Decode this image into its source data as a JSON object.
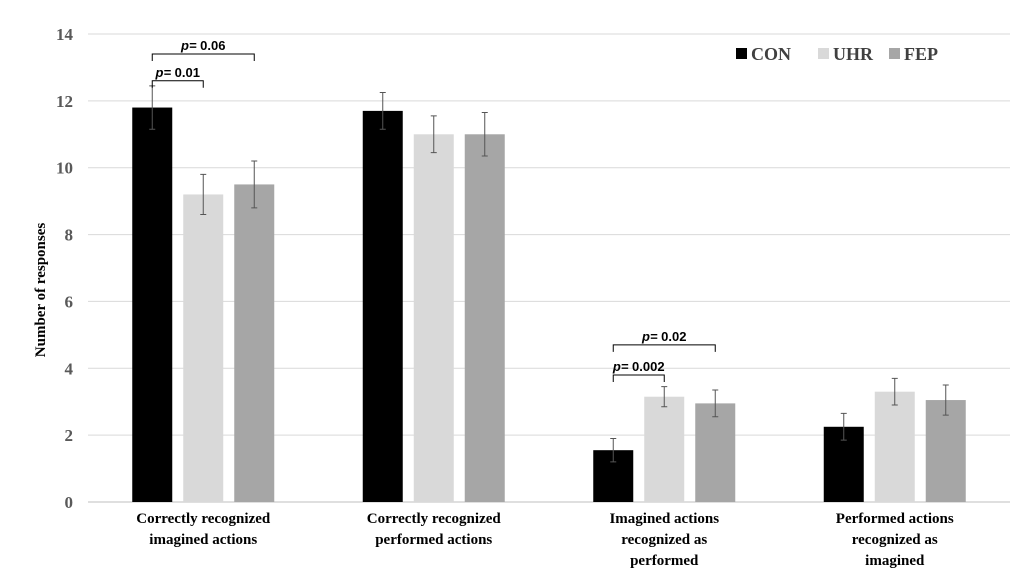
{
  "chart_data": {
    "type": "bar",
    "title": "",
    "xlabel": "",
    "ylabel": "Number of responses",
    "ylim": [
      0,
      14
    ],
    "yticks": [
      "0",
      "2",
      "4",
      "6",
      "8",
      "10",
      "12",
      "14"
    ],
    "grid": true,
    "legend_position": "top-right",
    "categories": [
      [
        "Correctly recognized",
        "imagined actions"
      ],
      [
        "Correctly recognized",
        "performed actions"
      ],
      [
        "Imagined actions",
        "recognized as",
        "performed"
      ],
      [
        "Performed actions",
        "recognized as",
        "imagined"
      ]
    ],
    "series": [
      {
        "name": "CON",
        "color": "#000000",
        "values": [
          11.8,
          11.7,
          1.55,
          2.25
        ],
        "errors": [
          0.65,
          0.55,
          0.35,
          0.4
        ]
      },
      {
        "name": "UHR",
        "color": "#d9d9d9",
        "values": [
          9.2,
          11.0,
          3.15,
          3.3
        ],
        "errors": [
          0.6,
          0.55,
          0.3,
          0.4
        ]
      },
      {
        "name": "FEP",
        "color": "#a6a6a6",
        "values": [
          9.5,
          11.0,
          2.95,
          3.05
        ],
        "errors": [
          0.7,
          0.65,
          0.4,
          0.45
        ]
      }
    ],
    "annotations": [
      {
        "text": "p= 0.06",
        "category": 0,
        "from_series": 0,
        "to_series": 2,
        "y": 13.7
      },
      {
        "text": "p= 0.01",
        "category": 0,
        "from_series": 0,
        "to_series": 1,
        "y": 12.9
      },
      {
        "text": "p= 0.02",
        "category": 2,
        "from_series": 0,
        "to_series": 2,
        "y": 5.0
      },
      {
        "text": "p= 0.002",
        "category": 2,
        "from_series": 0,
        "to_series": 1,
        "y": 4.1
      }
    ]
  }
}
